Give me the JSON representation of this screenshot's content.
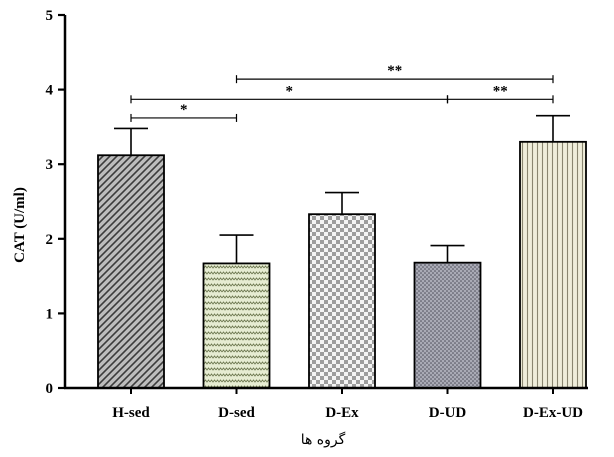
{
  "chart_data": {
    "type": "bar",
    "categories": [
      "H-sed",
      "D-sed",
      "D-Ex",
      "D-UD",
      "D-Ex-UD"
    ],
    "values": [
      3.12,
      1.67,
      2.33,
      1.68,
      3.3
    ],
    "errors": [
      0.36,
      0.38,
      0.29,
      0.23,
      0.35
    ],
    "patterns": [
      "diagonal-hatch",
      "zigzag-dots",
      "checkerboard",
      "fine-dots",
      "vertical-lines"
    ],
    "fill_colors": [
      "#b8b8b8",
      "#e4ead0",
      "#e8e8e8",
      "#a7a8b3",
      "#ebe8d2"
    ],
    "ylabel": "CAT (U/ml)",
    "xlabel": "گروه ها",
    "ylim": [
      0,
      5
    ],
    "yticks": [
      0,
      1,
      2,
      3,
      4,
      5
    ],
    "grid": false,
    "significance": [
      {
        "from": 0,
        "to": 1,
        "y": 3.62,
        "label": "*"
      },
      {
        "from": 0,
        "to": 3,
        "y": 3.87,
        "label": "*"
      },
      {
        "from": 3,
        "to": 4,
        "y": 3.87,
        "label": "**"
      },
      {
        "from": 1,
        "to": 4,
        "y": 4.14,
        "label": "**"
      }
    ]
  }
}
